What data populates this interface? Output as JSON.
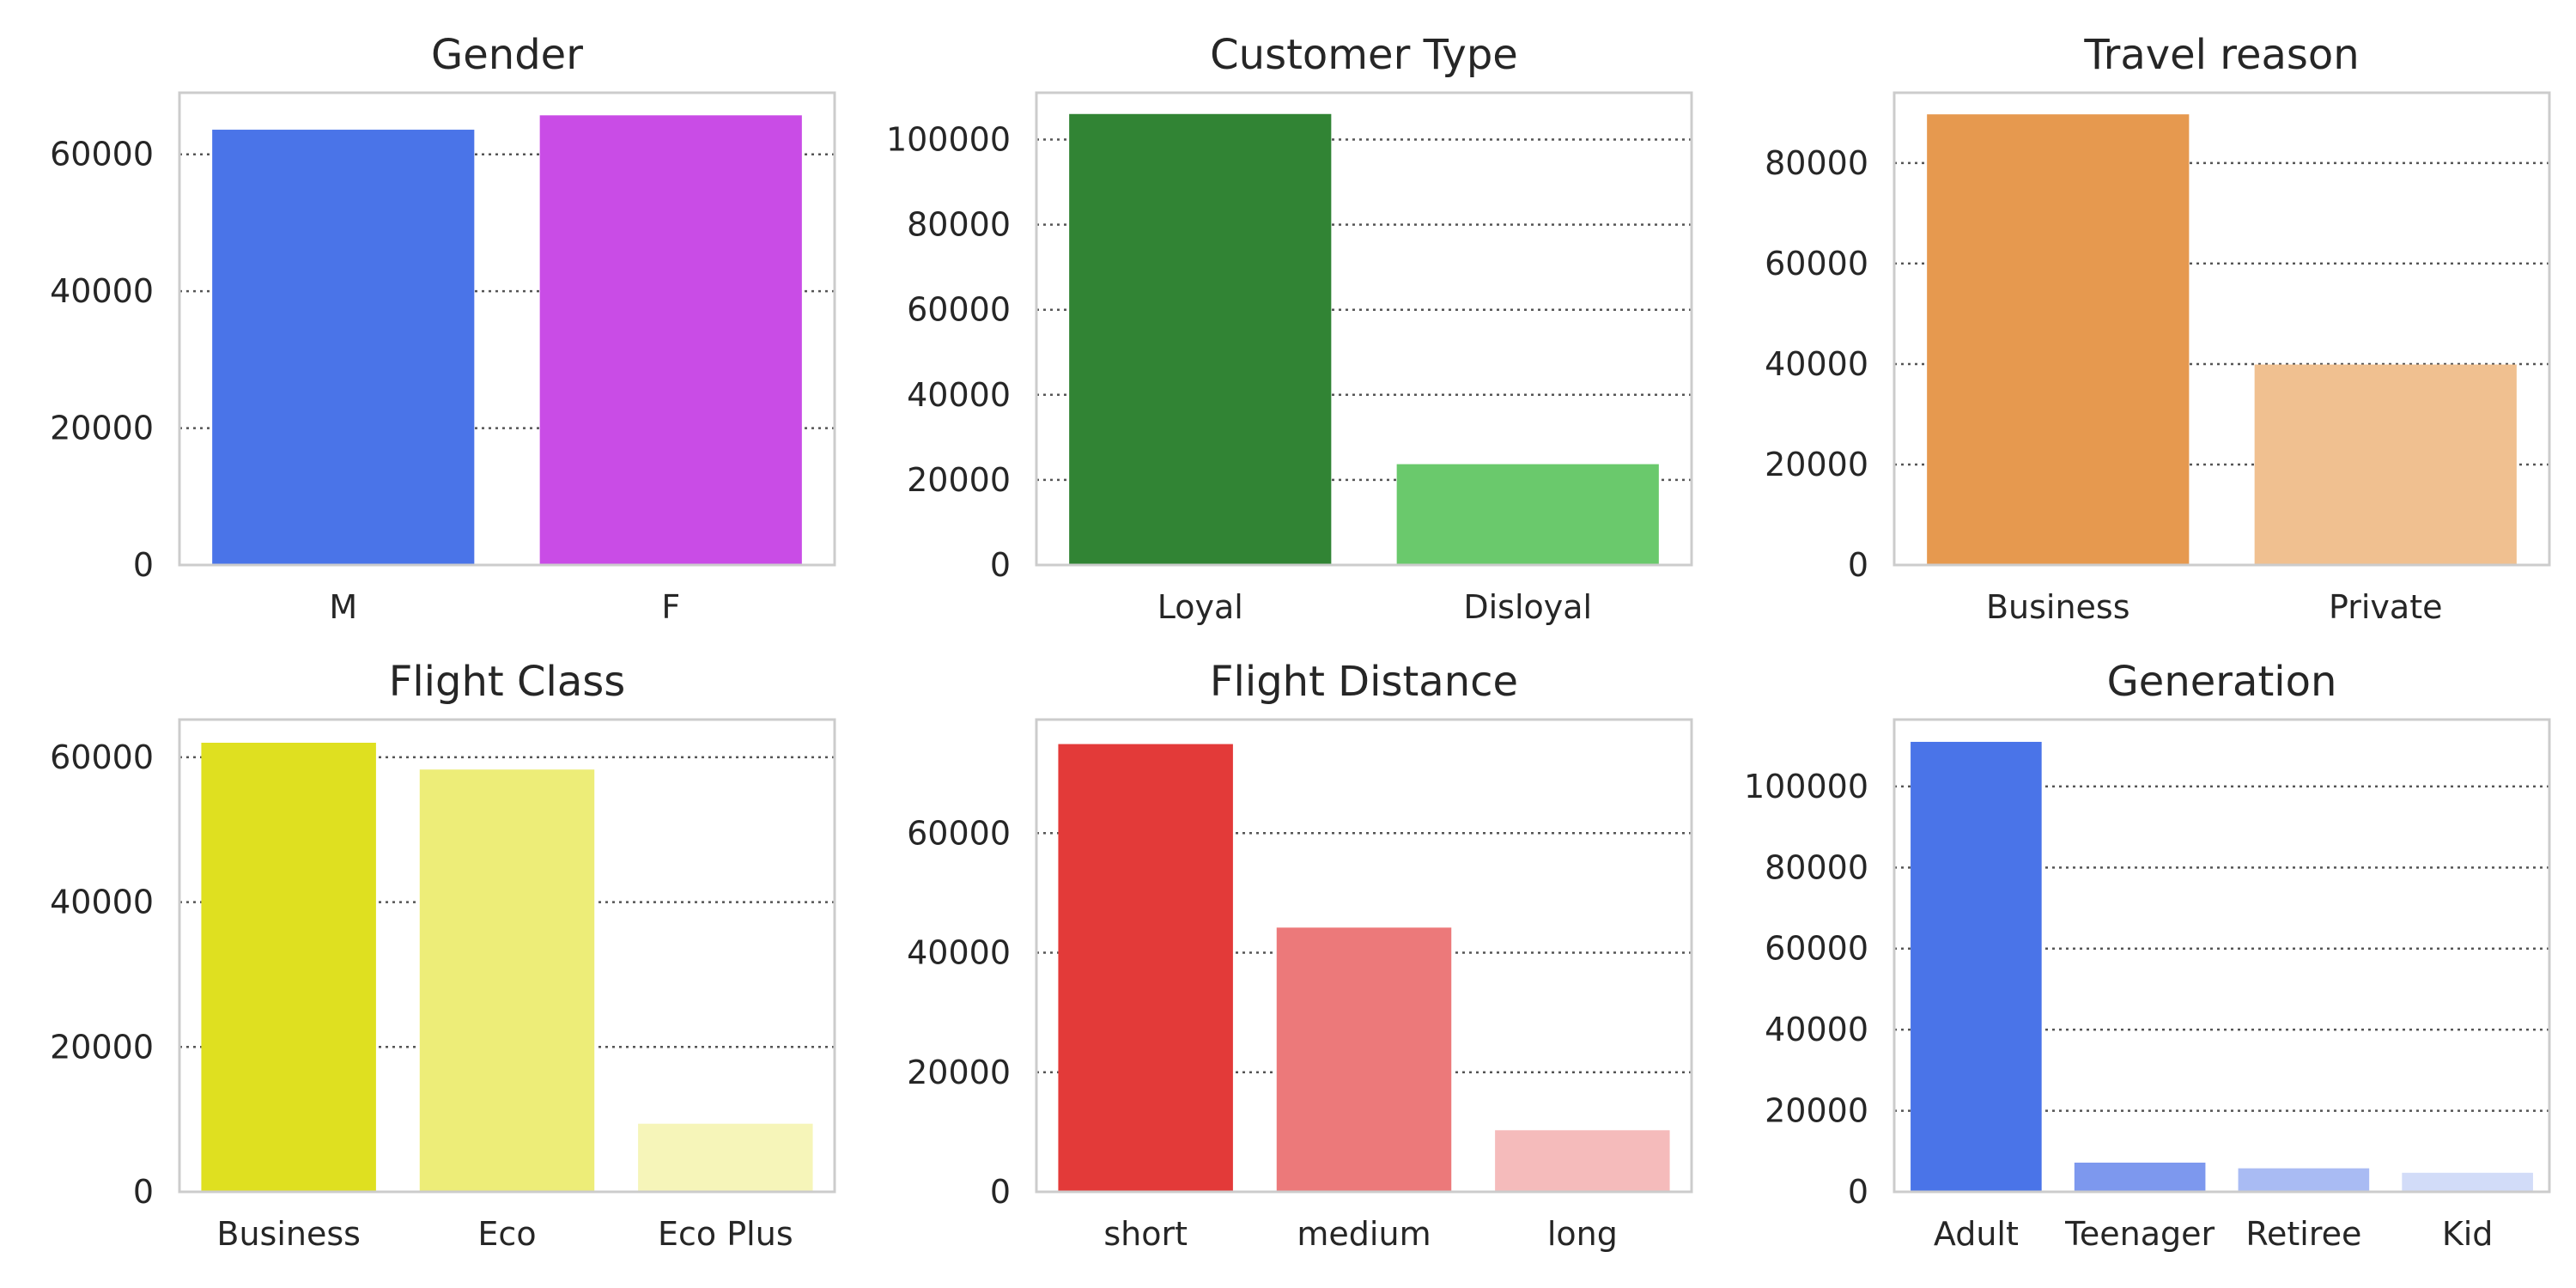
{
  "chart_data": [
    {
      "type": "bar",
      "title": "Gender",
      "categories": [
        "M",
        "F"
      ],
      "values": [
        63600,
        65700
      ],
      "colors": [
        "#4a74e8",
        "#c94ce6"
      ],
      "yticks": [
        0,
        20000,
        40000,
        60000
      ],
      "ylim": [
        0,
        69000
      ],
      "grid": true,
      "xlabel": "",
      "ylabel": ""
    },
    {
      "type": "bar",
      "title": "Customer Type",
      "categories": [
        "Loyal",
        "Disloyal"
      ],
      "values": [
        106000,
        23700
      ],
      "colors": [
        "#318434",
        "#6ac96c"
      ],
      "yticks": [
        0,
        20000,
        40000,
        60000,
        80000,
        100000
      ],
      "ylim": [
        0,
        111000
      ],
      "grid": true,
      "xlabel": "",
      "ylabel": ""
    },
    {
      "type": "bar",
      "title": "Travel reason",
      "categories": [
        "Business",
        "Private"
      ],
      "values": [
        89700,
        39900
      ],
      "colors": [
        "#e6994f",
        "#f0c090"
      ],
      "yticks": [
        0,
        20000,
        40000,
        60000,
        80000
      ],
      "ylim": [
        0,
        94000
      ],
      "grid": true,
      "xlabel": "",
      "ylabel": ""
    },
    {
      "type": "bar",
      "title": "Flight Class",
      "categories": [
        "Business",
        "Eco",
        "Eco Plus"
      ],
      "values": [
        62000,
        58300,
        9400
      ],
      "colors": [
        "#dfe020",
        "#eded78",
        "#f6f5b9"
      ],
      "yticks": [
        0,
        20000,
        40000,
        60000
      ],
      "ylim": [
        0,
        65200
      ],
      "grid": true,
      "xlabel": "",
      "ylabel": ""
    },
    {
      "type": "bar",
      "title": "Flight Distance",
      "categories": [
        "short",
        "medium",
        "long"
      ],
      "values": [
        74900,
        44200,
        10300
      ],
      "colors": [
        "#e33a39",
        "#ec797a",
        "#f5bbbb"
      ],
      "yticks": [
        0,
        20000,
        40000,
        60000
      ],
      "ylim": [
        0,
        79000
      ],
      "grid": true,
      "xlabel": "",
      "ylabel": ""
    },
    {
      "type": "bar",
      "title": "Generation",
      "categories": [
        "Adult",
        "Teenager",
        "Retiree",
        "Kid"
      ],
      "values": [
        111000,
        7200,
        5800,
        4700
      ],
      "colors": [
        "#4a74e8",
        "#7d98ee",
        "#a9bbf3",
        "#d2dcf8"
      ],
      "yticks": [
        0,
        20000,
        40000,
        60000,
        80000,
        100000
      ],
      "ylim": [
        0,
        116500
      ],
      "grid": true,
      "xlabel": "",
      "ylabel": ""
    }
  ]
}
